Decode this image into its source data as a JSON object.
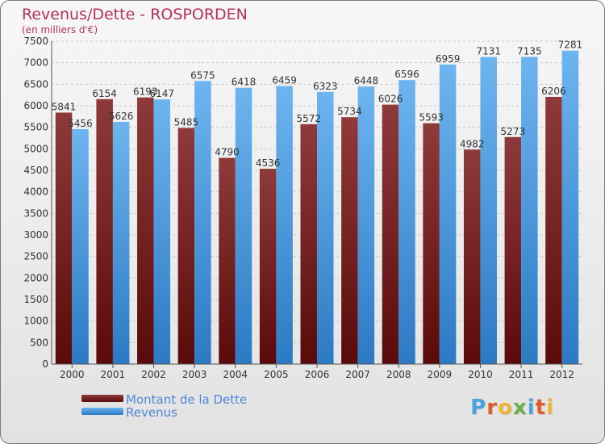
{
  "chart_data": {
    "type": "bar",
    "title": "Revenus/Dette - ROSPORDEN",
    "subtitle": "(en milliers d'€)",
    "categories": [
      "2000",
      "2001",
      "2002",
      "2003",
      "2004",
      "2005",
      "2006",
      "2007",
      "2008",
      "2009",
      "2010",
      "2011",
      "2012"
    ],
    "series": [
      {
        "name": "Montant de la Dette",
        "values": [
          5841,
          6154,
          6193,
          5485,
          4790,
          4536,
          5572,
          5734,
          6026,
          5593,
          4982,
          5273,
          6206
        ]
      },
      {
        "name": "Revenus",
        "values": [
          5456,
          5626,
          6147,
          6575,
          6418,
          6459,
          6323,
          6448,
          6596,
          6959,
          7131,
          7135,
          7281
        ]
      }
    ],
    "ylim": [
      0,
      7500
    ],
    "yticks": [
      0,
      500,
      1000,
      1500,
      2000,
      2500,
      3000,
      3500,
      4000,
      4500,
      5000,
      5500,
      6000,
      6500,
      7000,
      7500
    ],
    "grid": true,
    "legend_position": "bottom-left",
    "colors": {
      "debt_dark": "#5a0a0a",
      "debt_light": "#8e3a3a",
      "revenue_dark": "#2c7ac4",
      "revenue_light": "#6db5f0",
      "title": "#b5305c",
      "legend_text": "#4f86d8"
    }
  },
  "logo": {
    "text": "Proxiti"
  }
}
